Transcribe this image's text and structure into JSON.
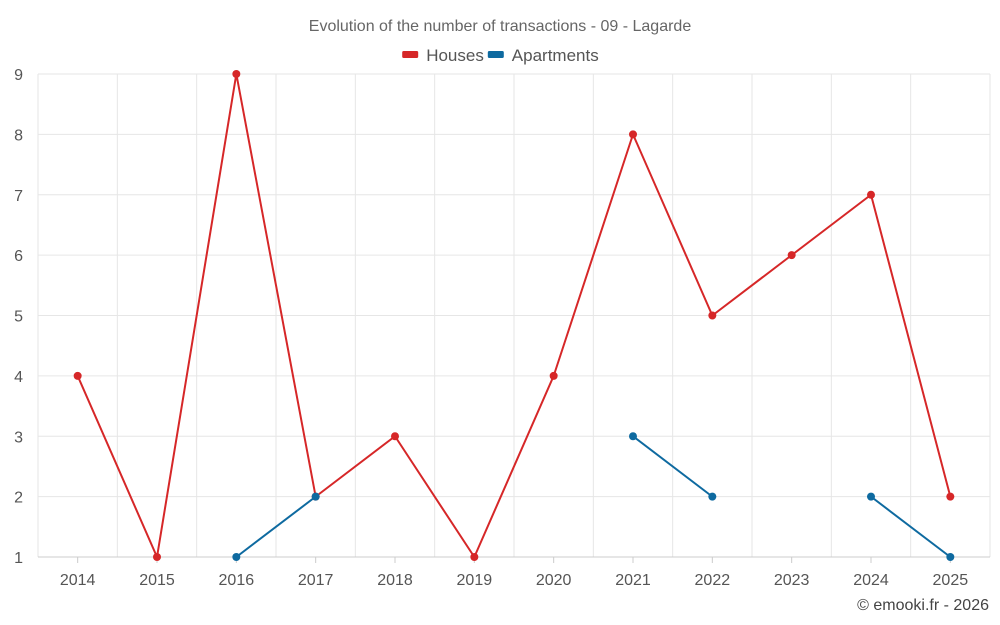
{
  "chart_data": {
    "type": "line",
    "title": "Evolution of the number of transactions - 09 - Lagarde",
    "categories": [
      "2014",
      "2015",
      "2016",
      "2017",
      "2018",
      "2019",
      "2020",
      "2021",
      "2022",
      "2023",
      "2024",
      "2025"
    ],
    "series": [
      {
        "name": "Houses",
        "color": "#d62728",
        "values": [
          4,
          1,
          9,
          2,
          3,
          1,
          4,
          8,
          5,
          6,
          7,
          2
        ]
      },
      {
        "name": "Apartments",
        "color": "#0e6aa0",
        "values": [
          null,
          null,
          1,
          2,
          null,
          null,
          null,
          3,
          2,
          null,
          2,
          1
        ]
      }
    ],
    "ylim": [
      1,
      9
    ],
    "yticks": [
      "1",
      "2",
      "3",
      "4",
      "5",
      "6",
      "7",
      "8",
      "9"
    ],
    "xlabel": "",
    "ylabel": "",
    "grid": true,
    "legend": "top-center",
    "credit": "© emooki.fr - 2026"
  }
}
